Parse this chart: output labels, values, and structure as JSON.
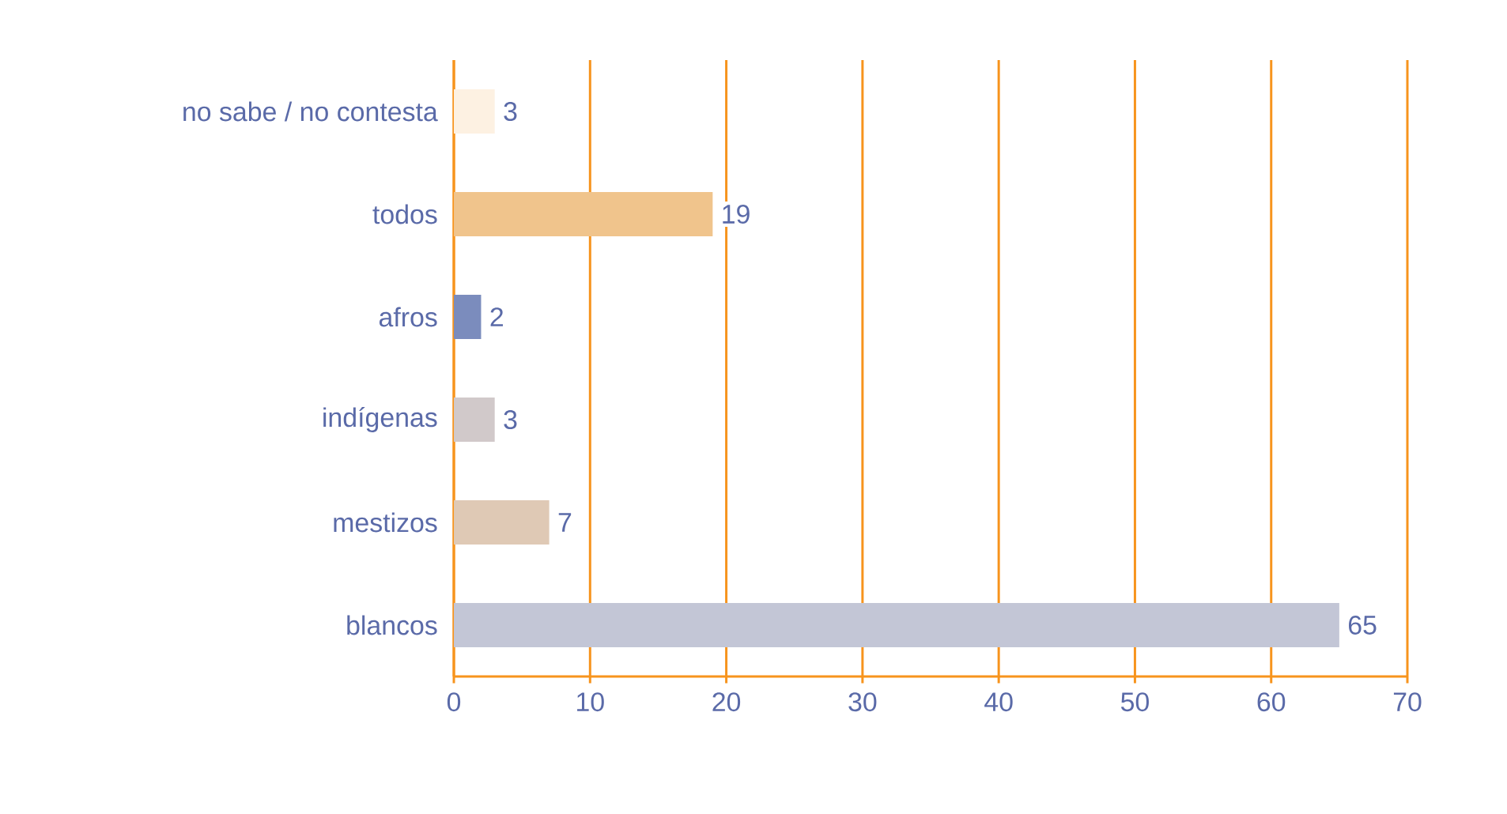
{
  "chart_data": {
    "type": "bar",
    "orientation": "horizontal",
    "categories": [
      "no sabe / no contesta",
      "todos",
      "afros",
      "indígenas",
      "mestizos",
      "blancos"
    ],
    "values": [
      3,
      19,
      2,
      3,
      7,
      65
    ],
    "value_labels": [
      "3",
      "19",
      "2",
      "3",
      "7",
      "65"
    ],
    "colors": [
      "#fdf1e2",
      "#f0c48c",
      "#7b8cbd",
      "#d1c9ca",
      "#dfc9b5",
      "#c3c6d6"
    ],
    "xlim": [
      0,
      70
    ],
    "xticks": [
      0,
      10,
      20,
      30,
      40,
      50,
      60,
      70
    ],
    "grid": "x"
  }
}
